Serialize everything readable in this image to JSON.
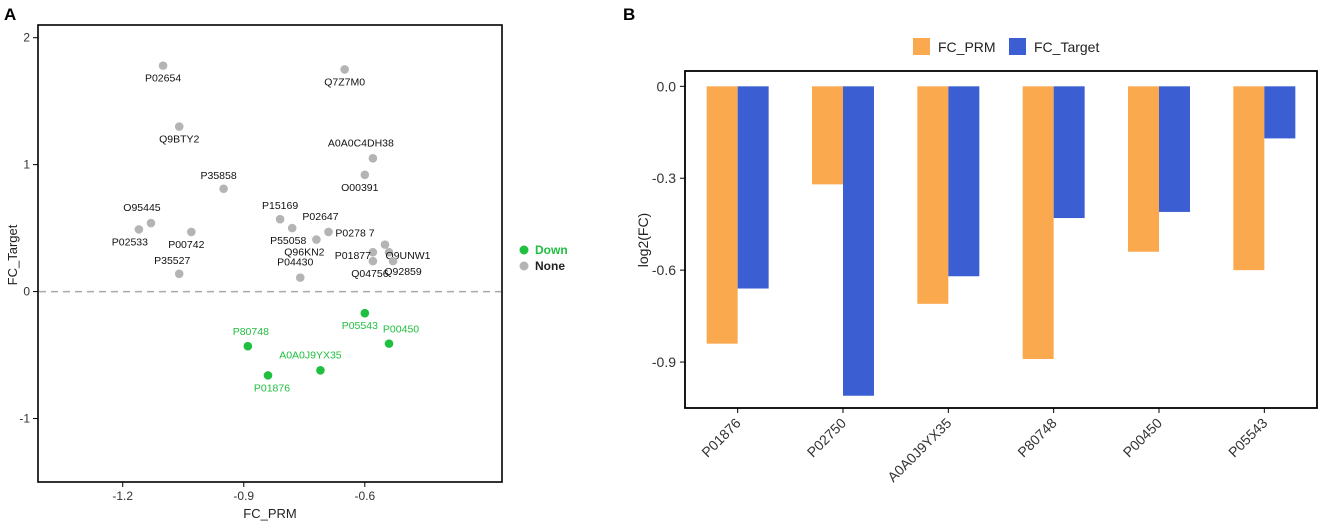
{
  "panels": {
    "a_label": "A",
    "b_label": "B"
  },
  "colors": {
    "down": "#1fbf3f",
    "none": "#b4b4b4",
    "fc_prm": "#fba94f",
    "fc_target": "#3b5fd2",
    "dashed": "#a8a8a8"
  },
  "chart_data": [
    {
      "type": "scatter",
      "panel": "A",
      "title": "",
      "xlabel": "FC_PRM",
      "ylabel": "FC_Target",
      "xlim": [
        -1.41,
        -0.26
      ],
      "ylim": [
        -1.5,
        2.1
      ],
      "xticks": [
        "-1.2",
        "-0.9",
        "-0.6"
      ],
      "xtick_values": [
        -1.2,
        -0.9,
        -0.6
      ],
      "yticks": [
        "-1",
        "0",
        "1",
        "2"
      ],
      "ytick_values": [
        -1,
        0,
        1,
        2
      ],
      "hline": 0,
      "legend": [
        {
          "name": "Down",
          "color": "#1fbf3f"
        },
        {
          "name": "None",
          "color": "#b4b4b4"
        }
      ],
      "series": [
        {
          "name": "None",
          "points": [
            {
              "label": "P02654",
              "x": -1.1,
              "y": 1.78
            },
            {
              "label": "Q7Z7M0",
              "x": -0.65,
              "y": 1.75
            },
            {
              "label": "Q9BTY2",
              "x": -1.06,
              "y": 1.3
            },
            {
              "label": "A0A0C4DH38",
              "x": -0.58,
              "y": 1.05
            },
            {
              "label": "O00391",
              "x": -0.6,
              "y": 0.92
            },
            {
              "label": "P35858",
              "x": -0.95,
              "y": 0.81
            },
            {
              "label": "O95445",
              "x": -1.13,
              "y": 0.54
            },
            {
              "label": "P02533",
              "x": -1.16,
              "y": 0.49
            },
            {
              "label": "P15169",
              "x": -0.81,
              "y": 0.57
            },
            {
              "label": "P55058",
              "x": -0.78,
              "y": 0.5
            },
            {
              "label": "P02647",
              "x": -0.69,
              "y": 0.47
            },
            {
              "label": "Q96KN2",
              "x": -0.72,
              "y": 0.41
            },
            {
              "label": "P00742",
              "x": -1.03,
              "y": 0.47
            },
            {
              "label": "P0278 7",
              "x": -0.55,
              "y": 0.37
            },
            {
              "label": "P01877",
              "x": -0.58,
              "y": 0.31
            },
            {
              "label": "Q9UNW1",
              "x": -0.54,
              "y": 0.31
            },
            {
              "label": "Q04756",
              "x": -0.58,
              "y": 0.24
            },
            {
              "label": "Q92859",
              "x": -0.53,
              "y": 0.24
            },
            {
              "label": "P35527",
              "x": -1.06,
              "y": 0.14
            },
            {
              "label": "P04430",
              "x": -0.76,
              "y": 0.11
            }
          ]
        },
        {
          "name": "Down",
          "points": [
            {
              "label": "P05543",
              "x": -0.6,
              "y": -0.17
            },
            {
              "label": "P80748",
              "x": -0.89,
              "y": -0.43
            },
            {
              "label": "P00450",
              "x": -0.54,
              "y": -0.41
            },
            {
              "label": "A0A0J9YX35",
              "x": -0.71,
              "y": -0.62
            },
            {
              "label": "P01876",
              "x": -0.84,
              "y": -0.66
            }
          ]
        }
      ]
    },
    {
      "type": "bar",
      "panel": "B",
      "title": "",
      "xlabel": "",
      "ylabel": "log2(FC)",
      "ylim": [
        -1.05,
        0.05
      ],
      "yticks": [
        "0.0",
        "-0.3",
        "-0.6",
        "-0.9"
      ],
      "ytick_values": [
        0.0,
        -0.3,
        -0.6,
        -0.9
      ],
      "legend_position": "top",
      "categories": [
        "P01876",
        "P02750",
        "A0A0J9YX35",
        "P80748",
        "P00450",
        "P05543"
      ],
      "series": [
        {
          "name": "FC_PRM",
          "color": "#fba94f",
          "values": [
            -0.84,
            -0.32,
            -0.71,
            -0.89,
            -0.54,
            -0.6
          ]
        },
        {
          "name": "FC_Target",
          "color": "#3b5fd2",
          "values": [
            -0.66,
            -1.01,
            -0.62,
            -0.43,
            -0.41,
            -0.17
          ]
        }
      ]
    }
  ]
}
